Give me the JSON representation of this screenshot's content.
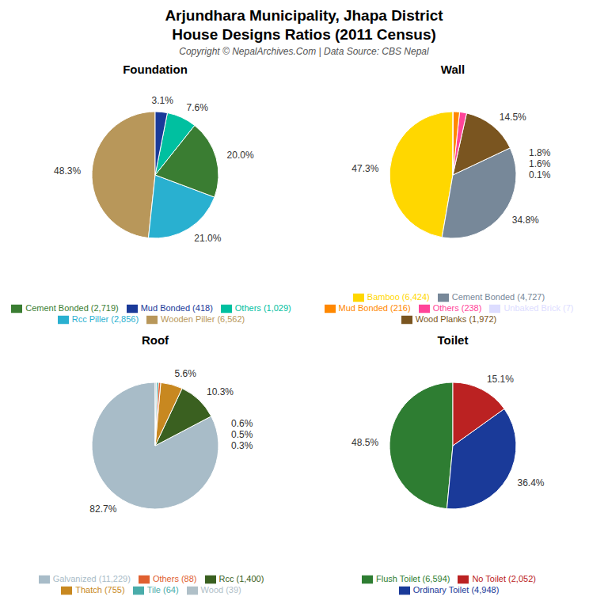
{
  "title": "Arjundhara Municipality, Jhapa District",
  "subtitle": "House Designs Ratios (2011 Census)",
  "annotations": [
    "Copyright © NepalArchives.Com | Data Source: CBS Nepal"
  ],
  "chart_data": [
    {
      "type": "pie",
      "title": "Foundation",
      "categories": [
        "Wooden Piller (6,562)",
        "Rcc Piller (2,856)",
        "Cement Bonded (2,719)",
        "Others (1,029)",
        "Mud Bonded (418)"
      ],
      "values": [
        48.3,
        21.0,
        20.0,
        7.6,
        3.1
      ],
      "value_labels": [
        "48.3%",
        "21.0%",
        "20.0%",
        "7.6%",
        "3.1%"
      ],
      "colors": [
        "#b8975a",
        "#29b0d0",
        "#3a7d32",
        "#00c0a0",
        "#1a3a99"
      ],
      "data_labels": true,
      "legend": "bottom"
    },
    {
      "type": "pie",
      "title": "Wall",
      "categories": [
        "Bamboo (6,424)",
        "Cement Bonded (4,727)",
        "Wood Planks (1,972)",
        "Others (238)",
        "Mud Bonded (216)",
        "Unbaked Brick (7)"
      ],
      "values": [
        47.3,
        34.8,
        14.5,
        1.8,
        1.6,
        0.1
      ],
      "value_labels": [
        "47.3%",
        "34.8%",
        "14.5%",
        "1.8%",
        "1.6%",
        "0.1%"
      ],
      "colors": [
        "#FFD700",
        "#778899",
        "#7a5520",
        "#FF4499",
        "#FF8800",
        "#ddddff"
      ],
      "data_labels": true,
      "legend": "bottom"
    },
    {
      "type": "pie",
      "title": "Roof",
      "categories": [
        "Galvanized (11,229)",
        "Rcc (1,400)",
        "Thatch (755)",
        "Others (88)",
        "Tile (64)",
        "Wood (39)"
      ],
      "values": [
        82.7,
        10.3,
        5.6,
        0.6,
        0.5,
        0.3
      ],
      "value_labels": [
        "82.7%",
        "10.3%",
        "5.6%",
        "0.6%",
        "0.5%",
        "0.3%"
      ],
      "colors": [
        "#a8bcc8",
        "#3a6020",
        "#c88820",
        "#e06030",
        "#4aacaa",
        "#b0c0c8"
      ],
      "data_labels": true,
      "legend": "bottom"
    },
    {
      "type": "pie",
      "title": "Toilet",
      "categories": [
        "Flush Toilet (6,594)",
        "Ordinary Toilet (4,948)",
        "No Toilet (2,052)"
      ],
      "values": [
        48.5,
        36.4,
        15.1
      ],
      "value_labels": [
        "48.5%",
        "36.4%",
        "15.1%"
      ],
      "colors": [
        "#2e7d32",
        "#1a3a99",
        "#bb2222"
      ],
      "data_labels": true,
      "legend": "bottom"
    }
  ]
}
